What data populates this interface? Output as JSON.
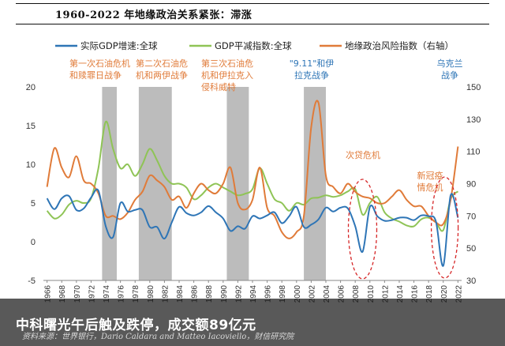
{
  "header": {
    "title": "1960-2022 年地缘政治关系紧张：滞涨"
  },
  "overlay": {
    "caption": "中科曙光午后触及跌停，成交额89亿元",
    "source": "资料来源：世界银行，Dario Caldara and Matteo Iacoviello，财信研究院"
  },
  "colors": {
    "gdp_growth": "#2e75b6",
    "gdp_deflator": "#8fc456",
    "gpr_index": "#e07b39",
    "shade": "#a6a6a6",
    "annotation_orange": "#e07b39",
    "annotation_blue": "#2e75b6",
    "ellipse": "#d62728"
  },
  "chart_data": {
    "type": "line",
    "title": "1960-2022 年地缘政治关系紧张：滞涨",
    "xlabel": "",
    "ylabel": "",
    "x_ticks": [
      "1966",
      "1968",
      "1970",
      "1972",
      "1974",
      "1976",
      "1978",
      "1980",
      "1982",
      "1984",
      "1986",
      "1988",
      "1990",
      "1992",
      "1994",
      "1996",
      "1998",
      "2000",
      "2002",
      "2004",
      "2006",
      "2008",
      "2010",
      "2012",
      "2014",
      "2016",
      "2018",
      "2020",
      "2022"
    ],
    "xlim": [
      1965.5,
      2022.5
    ],
    "ylim_left": [
      -5,
      20
    ],
    "yticks_left": [
      "-5",
      "0",
      "5",
      "10",
      "15",
      "20"
    ],
    "ylim_right": [
      30,
      150
    ],
    "yticks_right": [
      "30",
      "50",
      "70",
      "90",
      "110",
      "130",
      "150"
    ],
    "legend_position": "top",
    "shaded_periods": [
      [
        1973.5,
        1975.5
      ],
      [
        1978.5,
        1983
      ],
      [
        1990.5,
        1993.5
      ],
      [
        2001,
        2004
      ]
    ],
    "series": [
      {
        "name": "实际GDP增速:全球",
        "axis": "left",
        "color_key": "gdp_growth",
        "x": [
          1966,
          1967,
          1968,
          1969,
          1970,
          1971,
          1972,
          1973,
          1974,
          1975,
          1976,
          1977,
          1978,
          1979,
          1980,
          1981,
          1982,
          1983,
          1984,
          1985,
          1986,
          1987,
          1988,
          1989,
          1990,
          1991,
          1992,
          1993,
          1994,
          1995,
          1996,
          1997,
          1998,
          1999,
          2000,
          2001,
          2002,
          2003,
          2004,
          2005,
          2006,
          2007,
          2008,
          2009,
          2010,
          2011,
          2012,
          2013,
          2014,
          2015,
          2016,
          2017,
          2018,
          2019,
          2020,
          2021,
          2022
        ],
        "y": [
          5.6,
          4.2,
          5.6,
          5.9,
          4.1,
          4.3,
          5.7,
          6.6,
          2.0,
          0.6,
          5.0,
          3.9,
          4.1,
          4.1,
          1.9,
          1.9,
          0.4,
          2.5,
          4.5,
          3.7,
          3.4,
          3.8,
          4.6,
          3.8,
          3.0,
          1.4,
          2.0,
          1.7,
          3.3,
          3.0,
          3.4,
          3.8,
          2.4,
          3.3,
          4.5,
          1.9,
          2.2,
          2.9,
          4.4,
          3.9,
          4.4,
          4.3,
          2.0,
          -1.3,
          4.5,
          3.3,
          2.7,
          2.8,
          3.1,
          3.1,
          2.8,
          3.4,
          3.3,
          2.6,
          -3.1,
          6.0,
          3.1
        ]
      },
      {
        "name": "GDP平减指数:全球",
        "axis": "left",
        "color_key": "gdp_deflator",
        "x": [
          1966,
          1967,
          1968,
          1969,
          1970,
          1971,
          1972,
          1973,
          1974,
          1975,
          1976,
          1977,
          1978,
          1979,
          1980,
          1981,
          1982,
          1983,
          1984,
          1985,
          1986,
          1987,
          1988,
          1989,
          1990,
          1991,
          1992,
          1993,
          1994,
          1995,
          1996,
          1997,
          1998,
          1999,
          2000,
          2001,
          2002,
          2003,
          2004,
          2005,
          2006,
          2007,
          2008,
          2009,
          2010,
          2011,
          2012,
          2013,
          2014,
          2015,
          2016,
          2017,
          2018,
          2019,
          2020,
          2021,
          2022
        ],
        "y": [
          4.0,
          3.0,
          3.5,
          4.8,
          5.3,
          5.0,
          5.6,
          9.5,
          15.5,
          12.0,
          9.5,
          10.0,
          8.5,
          10.0,
          12.0,
          10.5,
          8.5,
          7.5,
          7.5,
          7.0,
          5.5,
          6.0,
          7.0,
          7.5,
          7.0,
          6.5,
          6.0,
          6.2,
          6.8,
          9.5,
          7.5,
          5.5,
          5.0,
          4.0,
          5.0,
          4.8,
          5.6,
          5.7,
          6.0,
          5.8,
          6.0,
          6.5,
          6.8,
          3.5,
          5.0,
          5.8,
          3.8,
          3.0,
          2.6,
          2.1,
          2.0,
          2.9,
          3.1,
          2.5,
          1.5,
          5.5,
          6.5
        ]
      },
      {
        "name": "地缘政治风险指数（右轴）",
        "axis": "right",
        "color_key": "gpr_index",
        "x": [
          1966,
          1967,
          1968,
          1969,
          1970,
          1971,
          1972,
          1973,
          1974,
          1975,
          1976,
          1977,
          1978,
          1979,
          1980,
          1981,
          1982,
          1983,
          1984,
          1985,
          1986,
          1987,
          1988,
          1989,
          1990,
          1991,
          1992,
          1993,
          1994,
          1995,
          1996,
          1997,
          1998,
          1999,
          2000,
          2001,
          2002,
          2003,
          2004,
          2005,
          2006,
          2007,
          2008,
          2009,
          2010,
          2011,
          2012,
          2013,
          2014,
          2015,
          2016,
          2017,
          2018,
          2019,
          2020,
          2021,
          2022
        ],
        "y": [
          88,
          112,
          100,
          94,
          107,
          92,
          90,
          84,
          70,
          70,
          68,
          72,
          80,
          85,
          95,
          92,
          88,
          80,
          82,
          75,
          84,
          90,
          86,
          84,
          90,
          100,
          78,
          74,
          80,
          100,
          75,
          70,
          60,
          56,
          60,
          70,
          125,
          140,
          95,
          88,
          84,
          90,
          85,
          82,
          81,
          78,
          78,
          82,
          86,
          80,
          76,
          76,
          70,
          66,
          65,
          80,
          113
        ]
      }
    ],
    "annotations": [
      {
        "lines": [
          "第一次石油危机",
          "和赎罪日战争"
        ],
        "color_key": "annotation_orange"
      },
      {
        "lines": [
          "第二次石油危",
          "机和两伊战争"
        ],
        "color_key": "annotation_orange"
      },
      {
        "lines": [
          "第三次石油危",
          "机和伊拉克入",
          "侵科威特"
        ],
        "color_key": "annotation_orange"
      },
      {
        "lines": [
          "\"9.11\"和伊",
          "拉克战争"
        ],
        "color_key": "annotation_blue"
      },
      {
        "lines": [
          "乌克兰",
          "战争"
        ],
        "color_key": "annotation_blue"
      },
      {
        "lines": [
          "次贷危机"
        ],
        "color_key": "annotation_orange"
      },
      {
        "lines": [
          "新冠疫",
          "情危机"
        ],
        "color_key": "annotation_orange"
      }
    ]
  }
}
